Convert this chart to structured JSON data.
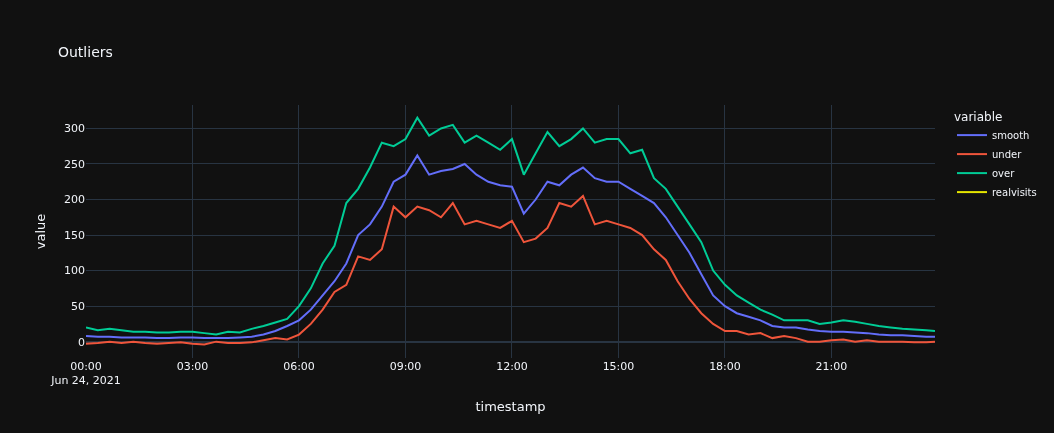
{
  "chart_data": {
    "type": "line",
    "title": "Outliers",
    "xlabel": "timestamp",
    "ylabel": "value",
    "legend_title": "variable",
    "legend": "top right",
    "grid": true,
    "line_style": "solid",
    "marker": "none",
    "x": [
      "2021-06-24T00:00",
      "2021-06-24T00:20",
      "2021-06-24T00:40",
      "2021-06-24T01:00",
      "2021-06-24T01:20",
      "2021-06-24T01:40",
      "2021-06-24T02:00",
      "2021-06-24T02:20",
      "2021-06-24T02:40",
      "2021-06-24T03:00",
      "2021-06-24T03:20",
      "2021-06-24T03:40",
      "2021-06-24T04:00",
      "2021-06-24T04:20",
      "2021-06-24T04:40",
      "2021-06-24T05:00",
      "2021-06-24T05:20",
      "2021-06-24T05:40",
      "2021-06-24T06:00",
      "2021-06-24T06:20",
      "2021-06-24T06:40",
      "2021-06-24T07:00",
      "2021-06-24T07:20",
      "2021-06-24T07:40",
      "2021-06-24T08:00",
      "2021-06-24T08:20",
      "2021-06-24T08:40",
      "2021-06-24T09:00",
      "2021-06-24T09:20",
      "2021-06-24T09:40",
      "2021-06-24T10:00",
      "2021-06-24T10:20",
      "2021-06-24T10:40",
      "2021-06-24T11:00",
      "2021-06-24T11:20",
      "2021-06-24T11:40",
      "2021-06-24T12:00",
      "2021-06-24T12:20",
      "2021-06-24T12:40",
      "2021-06-24T13:00",
      "2021-06-24T13:20",
      "2021-06-24T13:40",
      "2021-06-24T14:00",
      "2021-06-24T14:20",
      "2021-06-24T14:40",
      "2021-06-24T15:00",
      "2021-06-24T15:20",
      "2021-06-24T15:40",
      "2021-06-24T16:00",
      "2021-06-24T16:20",
      "2021-06-24T16:40",
      "2021-06-24T17:00",
      "2021-06-24T17:20",
      "2021-06-24T17:40",
      "2021-06-24T18:00",
      "2021-06-24T18:20",
      "2021-06-24T18:40",
      "2021-06-24T19:00",
      "2021-06-24T19:20",
      "2021-06-24T19:40",
      "2021-06-24T20:00",
      "2021-06-24T20:20",
      "2021-06-24T20:40",
      "2021-06-24T21:00",
      "2021-06-24T21:20",
      "2021-06-24T21:40",
      "2021-06-24T22:00",
      "2021-06-24T22:20",
      "2021-06-24T22:40",
      "2021-06-24T23:00",
      "2021-06-24T23:20",
      "2021-06-24T23:40",
      "2021-06-24T23:55"
    ],
    "xlim": [
      "2021-06-24T00:00",
      "2021-06-24T23:55"
    ],
    "xticks": [
      {
        "value": "2021-06-24T00:00",
        "label": "00:00\nJun 24, 2021"
      },
      {
        "value": "2021-06-24T03:00",
        "label": "03:00"
      },
      {
        "value": "2021-06-24T06:00",
        "label": "06:00"
      },
      {
        "value": "2021-06-24T09:00",
        "label": "09:00"
      },
      {
        "value": "2021-06-24T12:00",
        "label": "12:00"
      },
      {
        "value": "2021-06-24T15:00",
        "label": "15:00"
      },
      {
        "value": "2021-06-24T18:00",
        "label": "18:00"
      },
      {
        "value": "2021-06-24T21:00",
        "label": "21:00"
      }
    ],
    "ylim": [
      -23,
      333
    ],
    "yticks": [
      0,
      50,
      100,
      150,
      200,
      250,
      300
    ],
    "series": [
      {
        "name": "smooth",
        "color": "#636efa",
        "values": [
          8,
          7,
          7,
          6,
          6,
          6,
          5,
          5,
          6,
          6,
          5,
          5,
          5,
          6,
          7,
          10,
          15,
          22,
          30,
          45,
          65,
          85,
          110,
          150,
          165,
          190,
          225,
          235,
          262,
          235,
          240,
          243,
          250,
          235,
          225,
          220,
          218,
          180,
          200,
          225,
          220,
          235,
          245,
          230,
          225,
          225,
          215,
          205,
          195,
          175,
          150,
          125,
          95,
          65,
          50,
          40,
          35,
          30,
          22,
          20,
          20,
          17,
          15,
          14,
          14,
          13,
          12,
          10,
          9,
          9,
          8,
          7,
          7
        ]
      },
      {
        "name": "under",
        "color": "#ef553b",
        "values": [
          -3,
          -2,
          0,
          -2,
          0,
          -2,
          -3,
          -2,
          -1,
          -3,
          -4,
          0,
          -2,
          -2,
          -1,
          2,
          5,
          3,
          10,
          25,
          45,
          70,
          80,
          120,
          115,
          130,
          190,
          175,
          190,
          185,
          175,
          195,
          165,
          170,
          165,
          160,
          170,
          140,
          145,
          160,
          195,
          190,
          205,
          165,
          170,
          165,
          160,
          150,
          130,
          115,
          85,
          60,
          40,
          25,
          15,
          15,
          10,
          12,
          5,
          8,
          5,
          0,
          0,
          2,
          3,
          0,
          2,
          0,
          0,
          0,
          -1,
          -1,
          0
        ]
      },
      {
        "name": "over",
        "color": "#00cc96",
        "values": [
          20,
          16,
          18,
          16,
          14,
          14,
          13,
          13,
          14,
          14,
          12,
          10,
          14,
          13,
          18,
          22,
          27,
          32,
          50,
          75,
          110,
          135,
          195,
          215,
          245,
          280,
          275,
          285,
          315,
          290,
          300,
          305,
          280,
          290,
          280,
          270,
          285,
          235,
          265,
          295,
          275,
          285,
          300,
          280,
          285,
          285,
          265,
          270,
          230,
          215,
          190,
          165,
          140,
          100,
          80,
          65,
          55,
          45,
          38,
          30,
          30,
          30,
          25,
          27,
          30,
          28,
          25,
          22,
          20,
          18,
          17,
          16,
          15
        ]
      },
      {
        "name": "realvisits",
        "color": "#e6e600",
        "values": [
          null,
          null,
          null,
          null,
          null,
          null,
          null,
          null,
          null,
          null,
          null,
          null,
          null,
          null,
          null,
          null,
          null,
          null,
          null,
          null,
          null,
          null,
          null,
          null,
          null,
          null,
          null,
          null,
          null,
          null,
          null,
          null,
          null,
          null,
          null,
          null,
          null,
          null,
          null,
          null,
          null,
          null,
          null,
          null,
          null,
          null,
          null,
          null,
          null,
          null,
          null,
          null,
          null,
          null,
          null,
          null,
          null,
          null,
          null,
          null,
          null,
          null,
          null,
          null,
          null,
          null,
          null,
          null,
          null,
          null,
          null,
          null,
          null
        ]
      }
    ]
  }
}
